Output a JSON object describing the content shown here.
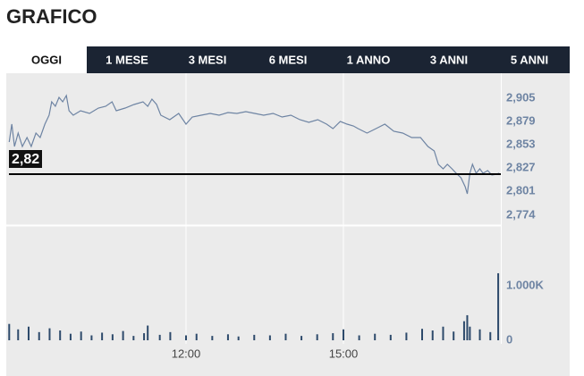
{
  "page": {
    "title": "GRAFICO",
    "tabs": [
      "OGGI",
      "1 MESE",
      "3 MESI",
      "6 MESI",
      "1 ANNO",
      "3 ANNI",
      "5 ANNI"
    ],
    "active_tab": 0
  },
  "chart_data": [
    {
      "type": "line",
      "color": "#6e84a3",
      "xlim": [
        8.625,
        18.0
      ],
      "ylim": [
        2.765,
        2.931
      ],
      "yticks": [
        {
          "value": 2.905,
          "label": "2,905"
        },
        {
          "value": 2.879,
          "label": "2,879"
        },
        {
          "value": 2.853,
          "label": "2,853"
        },
        {
          "value": 2.827,
          "label": "2,827"
        },
        {
          "value": 2.801,
          "label": "2,801"
        },
        {
          "value": 2.774,
          "label": "2,774"
        }
      ],
      "last_price": {
        "value": 2.82,
        "label": "2,82"
      },
      "x": [
        8.63,
        8.68,
        8.73,
        8.8,
        8.88,
        8.97,
        9.05,
        9.14,
        9.22,
        9.31,
        9.39,
        9.44,
        9.51,
        9.58,
        9.65,
        9.72,
        9.77,
        9.85,
        9.99,
        10.16,
        10.33,
        10.47,
        10.59,
        10.67,
        10.84,
        11.01,
        11.18,
        11.27,
        11.35,
        11.44,
        11.52,
        11.69,
        11.86,
        12.0,
        12.12,
        12.29,
        12.46,
        12.63,
        12.8,
        12.97,
        13.14,
        13.31,
        13.48,
        13.66,
        13.83,
        14.0,
        14.17,
        14.34,
        14.51,
        14.68,
        14.8,
        14.94,
        15.07,
        15.19,
        15.28,
        15.45,
        15.62,
        15.79,
        15.96,
        16.13,
        16.3,
        16.47,
        16.61,
        16.73,
        16.81,
        16.9,
        16.98,
        17.07,
        17.15,
        17.24,
        17.32,
        17.36,
        17.41,
        17.46,
        17.53,
        17.6,
        17.66,
        17.75,
        17.83,
        17.92,
        17.97
      ],
      "values": [
        2.856,
        2.876,
        2.851,
        2.866,
        2.851,
        2.861,
        2.851,
        2.866,
        2.861,
        2.876,
        2.886,
        2.901,
        2.896,
        2.906,
        2.901,
        2.908,
        2.891,
        2.886,
        2.891,
        2.888,
        2.894,
        2.896,
        2.901,
        2.891,
        2.894,
        2.898,
        2.901,
        2.896,
        2.904,
        2.898,
        2.886,
        2.881,
        2.888,
        2.876,
        2.884,
        2.886,
        2.888,
        2.886,
        2.889,
        2.888,
        2.89,
        2.888,
        2.886,
        2.888,
        2.884,
        2.886,
        2.881,
        2.878,
        2.881,
        2.876,
        2.871,
        2.879,
        2.876,
        2.874,
        2.871,
        2.866,
        2.871,
        2.876,
        2.868,
        2.866,
        2.861,
        2.861,
        2.851,
        2.846,
        2.831,
        2.826,
        2.831,
        2.826,
        2.821,
        2.816,
        2.806,
        2.798,
        2.821,
        2.831,
        2.821,
        2.826,
        2.821,
        2.824,
        2.819,
        2.82,
        2.821
      ]
    },
    {
      "type": "bar",
      "color": "#2d4a6b",
      "xlim": [
        8.625,
        18.0
      ],
      "ylim": [
        0,
        2065
      ],
      "yticks": [
        {
          "value": 1000,
          "label": "1.000K"
        },
        0
      ],
      "xticks": [
        {
          "value": 12,
          "label": "12:00"
        },
        {
          "value": 15,
          "label": "15:00"
        }
      ],
      "x": [
        8.63,
        8.8,
        9.0,
        9.2,
        9.4,
        9.6,
        9.8,
        10.0,
        10.2,
        10.4,
        10.6,
        10.8,
        11.0,
        11.2,
        11.27,
        11.5,
        11.7,
        12.0,
        12.2,
        12.5,
        12.8,
        13.0,
        13.3,
        13.6,
        13.9,
        14.2,
        14.5,
        14.8,
        15.0,
        15.3,
        15.6,
        15.9,
        16.2,
        16.5,
        16.7,
        16.9,
        17.1,
        17.3,
        17.36,
        17.41,
        17.6,
        17.8,
        17.95
      ],
      "values": [
        300,
        200,
        250,
        150,
        220,
        180,
        120,
        160,
        90,
        140,
        110,
        170,
        80,
        130,
        270,
        100,
        150,
        90,
        120,
        80,
        110,
        70,
        100,
        90,
        120,
        80,
        110,
        130,
        200,
        90,
        120,
        100,
        140,
        210,
        180,
        250,
        160,
        350,
        460,
        250,
        200,
        150,
        1230
      ]
    }
  ]
}
